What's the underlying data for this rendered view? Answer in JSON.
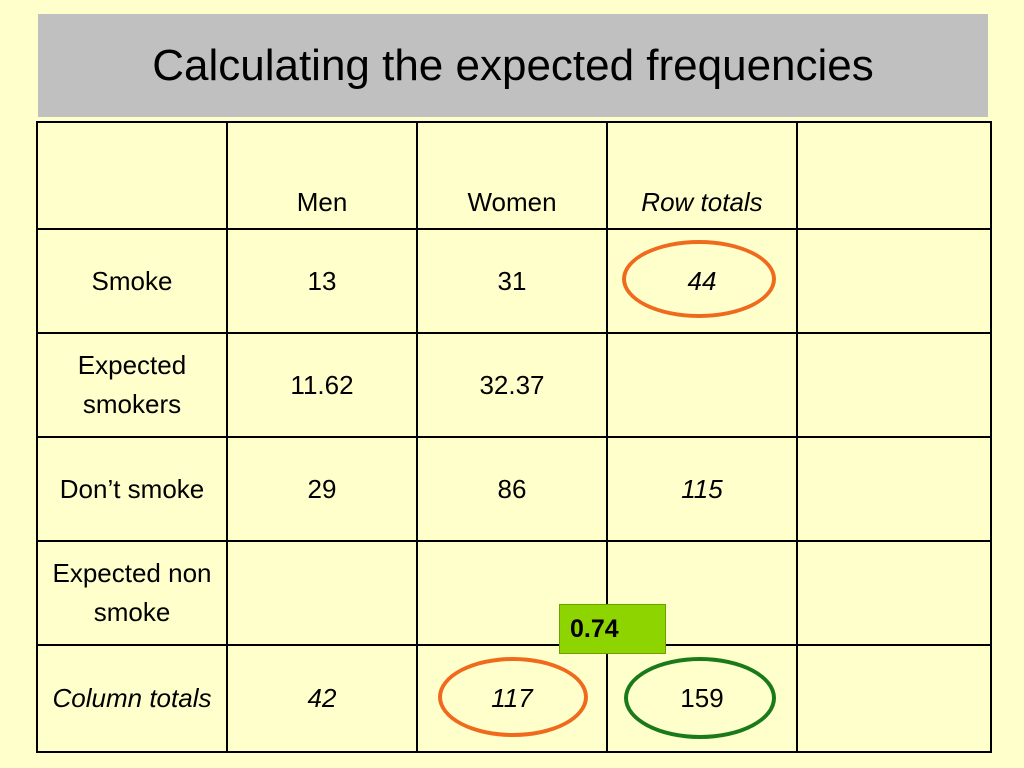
{
  "title": "Calculating the expected frequencies",
  "table": {
    "header": [
      "",
      "Men",
      "Women",
      "Row totals",
      ""
    ],
    "rows": [
      [
        "Smoke",
        "13",
        "31",
        "44",
        ""
      ],
      [
        "Expected smokers",
        "11.62",
        "32.37",
        "",
        ""
      ],
      [
        "Don’t smoke",
        "29",
        "86",
        "115",
        ""
      ],
      [
        "Expected non smoke",
        "",
        "",
        "",
        ""
      ],
      [
        "Column totals",
        "42",
        "117",
        "159",
        ""
      ]
    ]
  },
  "badge": {
    "value": "0.74",
    "color": "#8ed400"
  },
  "colors": {
    "background": "#ffffcc",
    "title_bar": "#c0c0c0",
    "oval_orange": "#f06a1e",
    "oval_green": "#1a7a1a",
    "grand_total_text": "#007a00"
  }
}
